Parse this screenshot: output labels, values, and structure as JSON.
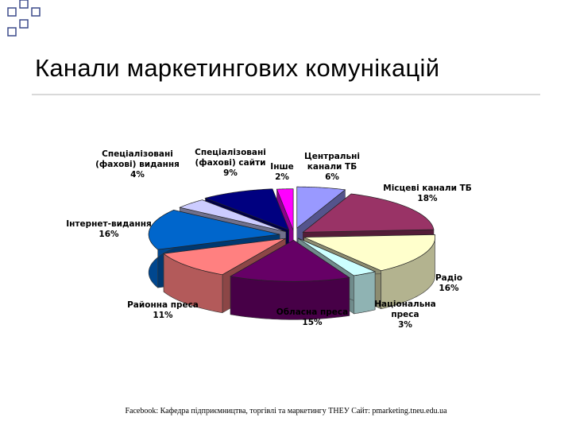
{
  "slide": {
    "title": "Канали маркетингових комунікацій",
    "footer": "Facebook: Кафедра підприємництва, торгівлі та маркетингу ТНЕУ Сайт: pmarketing.tneu.edu.ua"
  },
  "chart_data": {
    "type": "pie",
    "style": "3d-exploded",
    "categories": [
      "Центральні канали ТБ",
      "Місцеві канали ТБ",
      "Радіо",
      "Національна преса",
      "Обласна преса",
      "Районна преса",
      "Інтернет-видання",
      "Спеціалізовані (фахові) видання",
      "Спеціалізовані (фахові) сайти",
      "Інше"
    ],
    "values": [
      6,
      18,
      16,
      3,
      15,
      11,
      16,
      4,
      9,
      2
    ],
    "value_labels": [
      "6%",
      "18%",
      "16%",
      "3%",
      "15%",
      "11%",
      "16%",
      "4%",
      "9%",
      "2%"
    ],
    "label_lines": [
      [
        "Центральні",
        "канали ТБ"
      ],
      [
        "Місцеві канали ТБ"
      ],
      [
        "Радіо"
      ],
      [
        "Національна",
        "преса"
      ],
      [
        "Обласна преса"
      ],
      [
        "Районна преса"
      ],
      [
        "Інтернет-видання"
      ],
      [
        "Спеціалізовані",
        "(фахові) видання"
      ],
      [
        "Спеціалізовані",
        "(фахові) сайти"
      ],
      [
        "Інше"
      ]
    ],
    "colors": [
      "#9999ff",
      "#993366",
      "#ffffcc",
      "#ccffff",
      "#660066",
      "#ff8080",
      "#0066cc",
      "#ccccff",
      "#000080",
      "#ff00ff"
    ],
    "legend": "none"
  }
}
